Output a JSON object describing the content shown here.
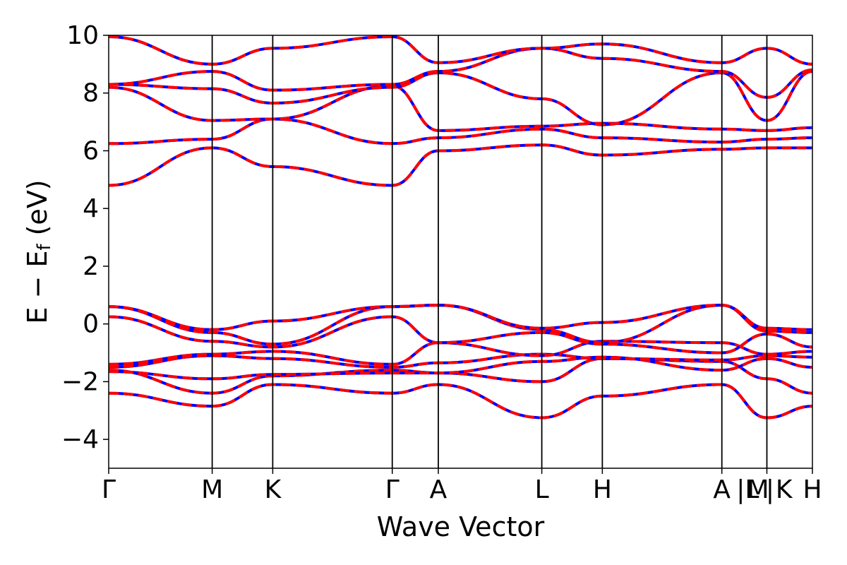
{
  "chart_data": {
    "type": "line",
    "title": "",
    "xlabel": "Wave Vector",
    "ylabel_main": "E − E",
    "ylabel_sub": "f",
    "ylabel_unit": " (eV)",
    "ylim": [
      -5,
      10
    ],
    "yticks": [
      -4,
      -2,
      0,
      2,
      4,
      6,
      8,
      10
    ],
    "ytick_labels": [
      "−4",
      "−2",
      "0",
      "2",
      "4",
      "6",
      "8",
      "10"
    ],
    "x_range": [
      0,
      13.6
    ],
    "kpoints": [
      {
        "label": "Γ",
        "x": 0
      },
      {
        "label": "M",
        "x": 2.0
      },
      {
        "label": "K",
        "x": 3.17
      },
      {
        "label": "Γ",
        "x": 5.48
      },
      {
        "label": "A",
        "x": 6.37
      },
      {
        "label": "L",
        "x": 8.37
      },
      {
        "label": "H",
        "x": 9.54
      },
      {
        "label": "A",
        "x": 11.85
      },
      {
        "label": "|L",
        "x": 12.35
      },
      {
        "label": "M",
        "x": 12.55
      },
      {
        "label": "|",
        "x": 12.78
      },
      {
        "label": "K",
        "x": 13.05
      },
      {
        "label": "H",
        "x": 13.6
      }
    ],
    "vlines": [
      0,
      2.0,
      3.17,
      5.48,
      6.37,
      8.37,
      9.54,
      11.85,
      12.72,
      13.6
    ],
    "segments": [
      0,
      2.0,
      3.17,
      5.48,
      6.37,
      8.37,
      9.54,
      11.85,
      12.72,
      13.6
    ],
    "gaps_after": [
      7
    ],
    "bands": [
      {
        "name": "v1",
        "y": [
          -2.4,
          -2.85,
          -2.1,
          -2.4,
          -2.1,
          -3.25,
          -2.5,
          -2.1,
          -3.25,
          -2.85,
          -2.55
        ]
      },
      {
        "name": "v2",
        "y": [
          -1.6,
          -2.4,
          -1.8,
          -1.6,
          -1.7,
          -2.0,
          -1.2,
          -1.3,
          -1.9,
          -2.4,
          -1.8
        ]
      },
      {
        "name": "v3",
        "y": [
          -1.65,
          -1.9,
          -1.75,
          -1.7,
          -1.7,
          -1.3,
          -1.15,
          -1.6,
          -1.2,
          -1.5,
          -1.25
        ]
      },
      {
        "name": "v4",
        "y": [
          -1.5,
          -1.1,
          -1.2,
          -1.5,
          -1.35,
          -1.05,
          -1.2,
          -1.25,
          -1.1,
          -1.15,
          -1.15
        ]
      },
      {
        "name": "v5",
        "y": [
          -1.4,
          -1.05,
          -0.95,
          -1.4,
          -0.65,
          -1.1,
          -0.6,
          -0.65,
          -1.05,
          -0.95,
          -0.7
        ]
      },
      {
        "name": "v6",
        "y": [
          0.25,
          -0.6,
          -0.8,
          0.25,
          -0.65,
          -0.3,
          -0.7,
          -1.0,
          -0.35,
          -0.8,
          -0.65
        ]
      },
      {
        "name": "v7",
        "y": [
          0.6,
          -0.3,
          -0.7,
          0.6,
          0.65,
          -0.2,
          -0.65,
          0.65,
          -0.25,
          -0.3,
          0.1
        ]
      },
      {
        "name": "v8",
        "y": [
          0.6,
          -0.2,
          0.1,
          0.6,
          0.65,
          -0.15,
          0.05,
          0.65,
          -0.15,
          -0.2,
          0.1
        ]
      },
      {
        "name": "c1",
        "y": [
          4.8,
          6.1,
          5.45,
          4.8,
          6.0,
          6.2,
          5.85,
          6.05,
          6.1,
          6.1,
          5.45,
          5.85
        ]
      },
      {
        "name": "c2",
        "y": [
          6.25,
          6.4,
          7.1,
          6.25,
          6.45,
          6.75,
          6.45,
          6.3,
          6.4,
          6.45,
          6.35,
          6.45
        ]
      },
      {
        "name": "c3",
        "y": [
          8.2,
          7.05,
          7.1,
          8.25,
          6.7,
          6.85,
          6.95,
          6.75,
          6.7,
          6.8,
          7.1,
          6.9
        ]
      },
      {
        "name": "c4",
        "y": [
          8.3,
          8.15,
          7.65,
          8.2,
          8.7,
          7.8,
          6.9,
          8.7,
          7.05,
          8.75,
          7.65,
          6.9
        ]
      },
      {
        "name": "c5",
        "y": [
          8.3,
          8.75,
          8.1,
          8.3,
          8.75,
          9.55,
          9.2,
          8.75,
          7.85,
          8.8,
          8.1,
          9.2
        ]
      },
      {
        "name": "c6",
        "y": [
          9.95,
          9.0,
          9.55,
          9.95,
          9.05,
          9.55,
          9.7,
          9.05,
          9.55,
          9.0,
          9.5,
          9.9
        ]
      }
    ],
    "colors": {
      "primary": "#0000ff",
      "overlay": "#ff0000",
      "axis": "#000000"
    }
  }
}
